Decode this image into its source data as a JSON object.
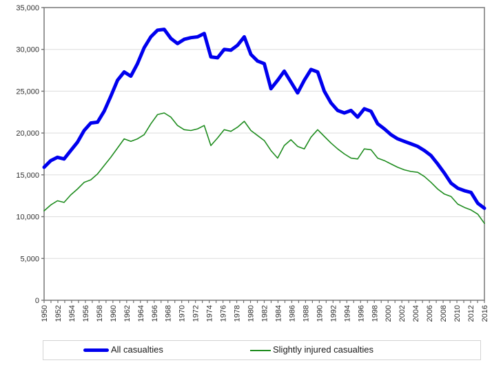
{
  "chart_data": {
    "type": "line",
    "title": "",
    "xlabel": "",
    "ylabel": "",
    "ylim": [
      0,
      35000
    ],
    "grid": "horizontal-only",
    "legend_position": "bottom",
    "x": [
      1950,
      1951,
      1952,
      1953,
      1954,
      1955,
      1956,
      1957,
      1958,
      1959,
      1960,
      1961,
      1962,
      1963,
      1964,
      1965,
      1966,
      1967,
      1968,
      1969,
      1970,
      1971,
      1972,
      1973,
      1974,
      1975,
      1976,
      1977,
      1978,
      1979,
      1980,
      1981,
      1982,
      1983,
      1984,
      1985,
      1986,
      1987,
      1988,
      1989,
      1990,
      1991,
      1992,
      1993,
      1994,
      1995,
      1996,
      1997,
      1998,
      1999,
      2000,
      2001,
      2002,
      2003,
      2004,
      2005,
      2006,
      2007,
      2008,
      2009,
      2010,
      2011,
      2012,
      2013,
      2014,
      2015,
      2016
    ],
    "x_tick_labels": [
      "1950",
      "1952",
      "1954",
      "1956",
      "1958",
      "1960",
      "1962",
      "1964",
      "1966",
      "1968",
      "1970",
      "1972",
      "1974",
      "1976",
      "1978",
      "1980",
      "1982",
      "1984",
      "1986",
      "1988",
      "1990",
      "1992",
      "1994",
      "1996",
      "1998",
      "2000",
      "2002",
      "2004",
      "2006",
      "2008",
      "2010",
      "2012",
      "2016"
    ],
    "y_ticks": [
      0,
      5000,
      10000,
      15000,
      20000,
      25000,
      30000,
      35000
    ],
    "y_tick_labels": [
      "0",
      "5,000",
      "10,000",
      "15,000",
      "20,000",
      "25,000",
      "30,000",
      "35,000"
    ],
    "series": [
      {
        "name": "All casualties",
        "color": "#0000ee",
        "stroke_width": 5,
        "values": [
          15900,
          16700,
          17100,
          16900,
          17900,
          18900,
          20300,
          21200,
          21300,
          22600,
          24400,
          26300,
          27300,
          26800,
          28300,
          30200,
          31500,
          32300,
          32400,
          31300,
          30700,
          31200,
          31400,
          31500,
          31900,
          29100,
          29000,
          30000,
          29900,
          30500,
          31500,
          29400,
          28600,
          28300,
          25300,
          26300,
          27400,
          26100,
          24800,
          26300,
          27600,
          27300,
          25000,
          23600,
          22700,
          22400,
          22700,
          21900,
          22900,
          22600,
          21100,
          20500,
          19800,
          19300,
          19000,
          18700,
          18400,
          17900,
          17300,
          16300,
          15200,
          14000,
          13400,
          13100,
          12900,
          11600,
          11000
        ]
      },
      {
        "name": "Slightly injured casualties",
        "color": "#1e8c1e",
        "stroke_width": 1.6,
        "values": [
          10700,
          11400,
          11900,
          11700,
          12600,
          13300,
          14100,
          14400,
          15100,
          16100,
          17100,
          18200,
          19300,
          19000,
          19300,
          19800,
          21100,
          22200,
          22400,
          21900,
          20900,
          20400,
          20300,
          20500,
          20900,
          18500,
          19400,
          20400,
          20200,
          20700,
          21400,
          20300,
          19700,
          19100,
          17900,
          17000,
          18500,
          19200,
          18400,
          18100,
          19500,
          20400,
          19600,
          18800,
          18100,
          17500,
          17000,
          16900,
          18100,
          18000,
          17000,
          16700,
          16300,
          15900,
          15600,
          15400,
          15300,
          14800,
          14100,
          13300,
          12700,
          12400,
          11500,
          11100,
          10800,
          10300,
          9200
        ]
      }
    ],
    "colors": {
      "gridline": "#dcdcdc",
      "plot_border": "#8c8c8c",
      "tick": "#707070",
      "tick_text": "#303030",
      "background": "#ffffff"
    }
  },
  "legend": {
    "items": [
      {
        "label": "All casualties"
      },
      {
        "label": "Slightly injured casualties"
      }
    ]
  }
}
